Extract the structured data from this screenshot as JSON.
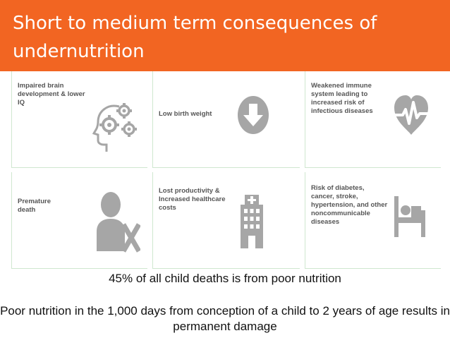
{
  "slide": {
    "title": "Short to medium term consequences of undernutrition",
    "accent_color": "#f26522",
    "icon_color": "#a6a6a6"
  },
  "cards": [
    {
      "text": "Impaired brain development & lower IQ",
      "icon": "brain-gears-icon"
    },
    {
      "text": "Low birth weight",
      "icon": "down-arrow-circle-icon"
    },
    {
      "text": "Weakened immune system leading to increased risk of infectious diseases",
      "icon": "heart-pulse-icon"
    },
    {
      "text": "Premature death",
      "icon": "person-x-icon"
    },
    {
      "text": "Lost productivity & Increased healthcare costs",
      "icon": "hospital-building-icon"
    },
    {
      "text": "Risk of diabetes, cancer, stroke, hypertension, and other noncommunicable diseases",
      "icon": "hospital-bed-icon"
    }
  ],
  "statements": {
    "deaths": "45% of all child deaths is from poor nutrition",
    "damage": "Poor nutrition in the 1,000 days from conception of a child to 2 years of age results in permanent damage"
  }
}
